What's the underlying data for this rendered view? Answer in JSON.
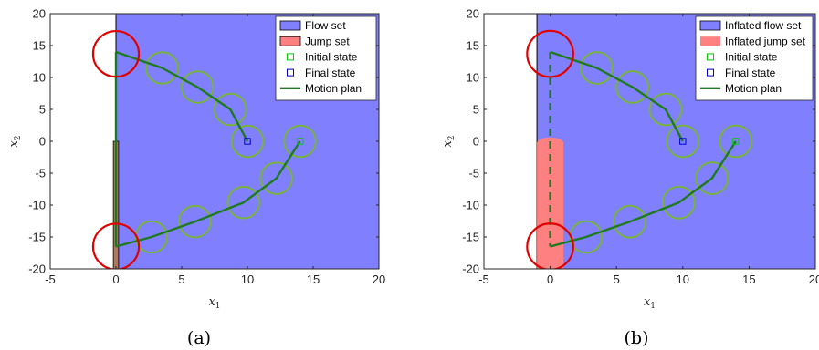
{
  "chart_data": [
    {
      "type": "line",
      "caption": "(a)",
      "xlabel": "x",
      "xlabel_sub": "1",
      "ylabel": "x",
      "ylabel_sub": "2",
      "xlim": [
        -5,
        20
      ],
      "ylim": [
        -20,
        20
      ],
      "xticks": [
        -5,
        0,
        5,
        10,
        15,
        20
      ],
      "yticks": [
        -20,
        -15,
        -10,
        -5,
        0,
        5,
        10,
        15,
        20
      ],
      "grid": false,
      "legend_position": "top-right",
      "legend": [
        "Flow set",
        "Jump set",
        "Initial state",
        "Final state",
        "Motion plan"
      ],
      "colors": {
        "flow": "#8080ff",
        "jump": "#ff8080",
        "initial": "#00cc00",
        "final": "#0000cc",
        "plan": "#1f7a1f",
        "circle_green": "#77b33a",
        "circle_red": "#e00000"
      },
      "flow_set": {
        "x": [
          0,
          20
        ],
        "y": [
          -20,
          20
        ]
      },
      "jump_set": {
        "x": [
          -0.2,
          0.2
        ],
        "y": [
          -20,
          0
        ]
      },
      "initial_state": [
        14,
        0
      ],
      "final_state": [
        10,
        0
      ],
      "plan_jump_style": "solid",
      "motion_plan": {
        "upper_x": [
          0,
          3.5,
          6.2,
          8.7,
          10
        ],
        "upper_y": [
          14,
          11.5,
          8.5,
          5,
          0
        ],
        "jump_x": [
          0,
          0
        ],
        "jump_y": [
          14,
          -16.5
        ],
        "lower_x": [
          0,
          2.7,
          6,
          9.7,
          12.2,
          14
        ],
        "lower_y": [
          -16.5,
          -15,
          -12.6,
          -9.6,
          -5.8,
          0
        ]
      },
      "green_circles": [
        [
          3.5,
          11.5
        ],
        [
          6.2,
          8.5
        ],
        [
          8.7,
          5
        ],
        [
          10,
          0
        ],
        [
          2.7,
          -15
        ],
        [
          6,
          -12.6
        ],
        [
          9.7,
          -9.6
        ],
        [
          12.2,
          -5.8
        ],
        [
          14,
          0
        ]
      ],
      "red_circles": [
        [
          0,
          13.7
        ],
        [
          0,
          -16.5
        ]
      ],
      "circle_radius": 1.2
    },
    {
      "type": "line",
      "caption": "(b)",
      "xlabel": "x",
      "xlabel_sub": "1",
      "ylabel": "x",
      "ylabel_sub": "2",
      "xlim": [
        -5,
        20
      ],
      "ylim": [
        -20,
        20
      ],
      "xticks": [
        -5,
        0,
        5,
        10,
        15,
        20
      ],
      "xtick_labels": [
        "-5",
        "0",
        "5",
        "10",
        "15",
        "20"
      ],
      "yticks": [
        -20,
        -15,
        -10,
        -5,
        0,
        5,
        10,
        15,
        20
      ],
      "grid": false,
      "legend_position": "top-right",
      "legend": [
        "Inflated flow set",
        "Inflated jump set",
        "Initial state",
        "Final state",
        "Motion plan"
      ],
      "colors": {
        "flow": "#8080ff",
        "jump": "#ff8080",
        "initial": "#00cc00",
        "final": "#0000cc",
        "plan": "#1f7a1f",
        "circle_green": "#77b33a",
        "circle_red": "#e00000"
      },
      "flow_set": {
        "x": [
          -1,
          20
        ],
        "y": [
          -20,
          20
        ]
      },
      "jump_set": {
        "x": [
          -1,
          1
        ],
        "y": [
          -20,
          0.6
        ]
      },
      "initial_state": [
        14,
        0
      ],
      "final_state": [
        10,
        0
      ],
      "plan_jump_style": "dashed",
      "motion_plan": {
        "upper_x": [
          0,
          3.5,
          6.2,
          8.7,
          10
        ],
        "upper_y": [
          14,
          11.5,
          8.5,
          5,
          0
        ],
        "jump_x": [
          0,
          0
        ],
        "jump_y": [
          14,
          -16.5
        ],
        "lower_x": [
          0,
          2.7,
          6,
          9.7,
          12.2,
          14
        ],
        "lower_y": [
          -16.5,
          -15,
          -12.6,
          -9.6,
          -5.8,
          0
        ]
      },
      "green_circles": [
        [
          3.5,
          11.5
        ],
        [
          6.2,
          8.5
        ],
        [
          8.7,
          5
        ],
        [
          10,
          0
        ],
        [
          2.7,
          -15
        ],
        [
          6,
          -12.6
        ],
        [
          9.7,
          -9.6
        ],
        [
          12.2,
          -5.8
        ],
        [
          14,
          0
        ]
      ],
      "red_circles": [
        [
          0,
          13.7
        ],
        [
          0,
          -16.5
        ]
      ],
      "circle_radius": 1.2
    }
  ]
}
